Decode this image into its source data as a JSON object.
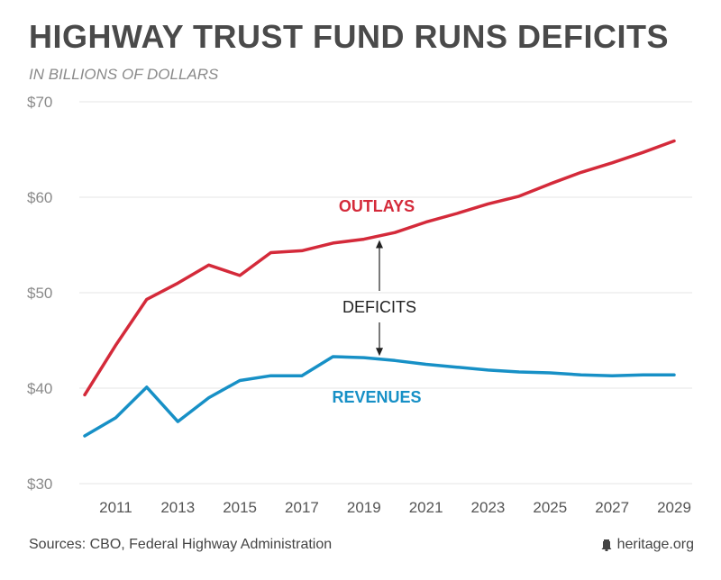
{
  "chart_data": {
    "type": "line",
    "title": "HIGHWAY TRUST FUND RUNS DEFICITS",
    "subtitle": "IN BILLIONS OF DOLLARS",
    "x": [
      2010,
      2011,
      2012,
      2013,
      2014,
      2015,
      2016,
      2017,
      2018,
      2019,
      2020,
      2021,
      2022,
      2023,
      2024,
      2025,
      2026,
      2027,
      2028,
      2029
    ],
    "x_tick_labels": [
      "2011",
      "2013",
      "2015",
      "2017",
      "2019",
      "2021",
      "2023",
      "2025",
      "2027",
      "2029"
    ],
    "x_tick_values": [
      2011,
      2013,
      2015,
      2017,
      2019,
      2021,
      2023,
      2025,
      2027,
      2029
    ],
    "y_tick_labels": [
      "$70",
      "$60",
      "$50",
      "$40",
      "$30"
    ],
    "y_tick_values": [
      70,
      60,
      50,
      40,
      30
    ],
    "ylim": [
      30,
      70
    ],
    "xlim": [
      2010,
      2029
    ],
    "grid": true,
    "series": [
      {
        "name": "OUTLAYS",
        "color": "#d42a3a",
        "values": [
          39.3,
          44.5,
          49.3,
          51.0,
          52.9,
          51.8,
          54.2,
          54.4,
          55.2,
          55.6,
          56.3,
          57.4,
          58.3,
          59.3,
          60.1,
          61.4,
          62.6,
          63.6,
          64.7,
          65.9
        ]
      },
      {
        "name": "REVENUES",
        "color": "#1790c6",
        "values": [
          35.0,
          36.9,
          40.1,
          36.5,
          39.0,
          40.8,
          41.3,
          41.3,
          43.3,
          43.2,
          42.9,
          42.5,
          42.2,
          41.9,
          41.7,
          41.6,
          41.4,
          41.3,
          41.4,
          41.4
        ]
      }
    ],
    "annotation": {
      "text": "DEFICITS",
      "x": 2019.5,
      "from_value": 50.5,
      "to_values": [
        55.9,
        43.0
      ]
    }
  },
  "footer": {
    "sources": "Sources: CBO, Federal Highway Administration",
    "brand": "heritage.org",
    "brand_icon": "bell-icon"
  }
}
